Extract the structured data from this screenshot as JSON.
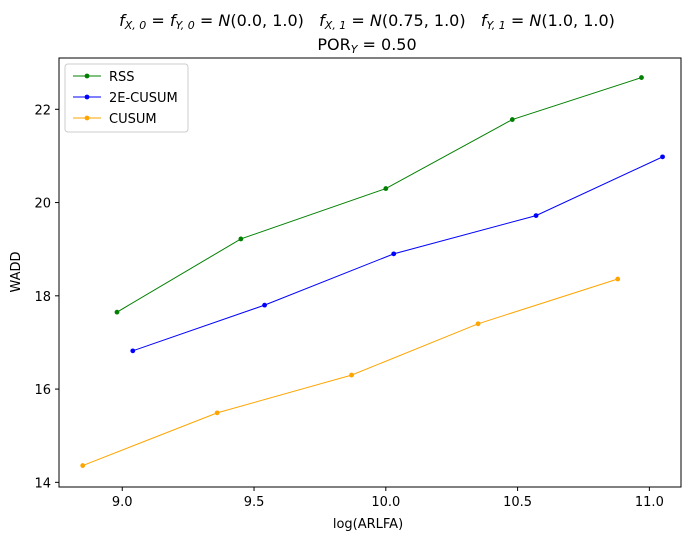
{
  "chart_data": {
    "type": "line",
    "title_line1": {
      "parts": [
        {
          "t": "f",
          "i": true
        },
        {
          "t": "X, 0",
          "sub": true,
          "i": true
        },
        {
          "t": " = "
        },
        {
          "t": "f",
          "i": true
        },
        {
          "t": "Y, 0",
          "sub": true,
          "i": true
        },
        {
          "t": " = "
        },
        {
          "t": "N",
          "i": true
        },
        {
          "t": "(0.0, 1.0)"
        },
        {
          "t": "   "
        },
        {
          "t": "f",
          "i": true
        },
        {
          "t": "X, 1",
          "sub": true,
          "i": true
        },
        {
          "t": " = "
        },
        {
          "t": "N",
          "i": true
        },
        {
          "t": "(0.75, 1.0)"
        },
        {
          "t": "   "
        },
        {
          "t": "f",
          "i": true
        },
        {
          "t": "Y, 1",
          "sub": true,
          "i": true
        },
        {
          "t": " = "
        },
        {
          "t": "N",
          "i": true
        },
        {
          "t": "(1.0, 1.0)"
        }
      ]
    },
    "title_line2": {
      "parts": [
        {
          "t": "POR"
        },
        {
          "t": "Y",
          "sub": true,
          "i": true
        },
        {
          "t": " = 0.50"
        }
      ]
    },
    "xlabel": "log(ARLFA)",
    "ylabel": "WADD",
    "xlim": [
      8.76,
      11.12
    ],
    "ylim": [
      13.9,
      23.1
    ],
    "xticks": [
      9.0,
      9.5,
      10.0,
      10.5,
      11.0
    ],
    "xtick_labels": [
      "9.0",
      "9.5",
      "10.0",
      "10.5",
      "11.0"
    ],
    "yticks": [
      14,
      16,
      18,
      20,
      22
    ],
    "ytick_labels": [
      "14",
      "16",
      "18",
      "20",
      "22"
    ],
    "grid": false,
    "legend_position": "upper-left",
    "series": [
      {
        "name": "RSS",
        "color": "#008000",
        "x": [
          8.98,
          9.45,
          10.0,
          10.48,
          10.97
        ],
        "y": [
          17.65,
          19.22,
          20.3,
          21.78,
          22.68
        ]
      },
      {
        "name": "2E-CUSUM",
        "color": "#0000ff",
        "x": [
          9.04,
          9.54,
          10.03,
          10.57,
          11.05
        ],
        "y": [
          16.82,
          17.8,
          18.9,
          19.72,
          20.98
        ]
      },
      {
        "name": "CUSUM",
        "color": "#ffa500",
        "x": [
          8.85,
          9.36,
          9.87,
          10.35,
          10.88
        ],
        "y": [
          14.36,
          15.49,
          16.3,
          17.4,
          18.36
        ]
      }
    ]
  }
}
